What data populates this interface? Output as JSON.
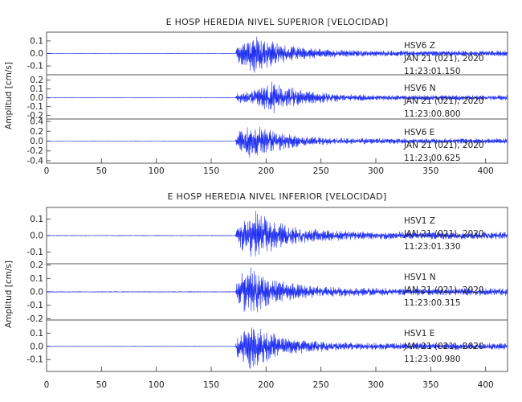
{
  "colors": {
    "trace": "#1f2ff0",
    "frame": "#555555",
    "text": "#222222",
    "background": "#ffffff"
  },
  "chart_data": [
    {
      "type": "line",
      "title": "E HOSP HEREDIA NIVEL SUPERIOR [VELOCIDAD]",
      "ylabel": "Amplitud [cm/s]",
      "xlim": [
        0,
        420
      ],
      "x_ticks": [
        "0",
        "50",
        "100",
        "150",
        "200",
        "250",
        "300",
        "350",
        "400"
      ],
      "grid": false,
      "channels": [
        {
          "station": "HSV6",
          "component": "Z",
          "date": "JAN 21 (021), 2020",
          "time": "11:23:01.150",
          "ylim": [
            -0.17,
            0.17
          ],
          "y_ticks": [
            "0.1",
            "0.0",
            "-0.1"
          ],
          "onset": 172,
          "peak_time": 191,
          "peak": 0.16,
          "noise": 0.002
        },
        {
          "station": "HSV6",
          "component": "N",
          "date": "JAN 21 (021), 2020",
          "time": "11:23:00.800",
          "ylim": [
            -0.24,
            0.26
          ],
          "y_ticks": [
            "0.2",
            "0.1",
            "0.0",
            "-0.1",
            "-0.2"
          ],
          "onset": 172,
          "peak_time": 208,
          "peak": 0.2,
          "noise": 0.003
        },
        {
          "station": "HSV6",
          "component": "E",
          "date": "JAN 21 (021), 2020",
          "time": "11:23:00.625",
          "ylim": [
            -0.45,
            0.45
          ],
          "y_ticks": [
            "0.4",
            "0.2",
            "0.0",
            "-0.2",
            "-0.4"
          ],
          "onset": 172,
          "peak_time": 190,
          "peak": 0.38,
          "noise": 0.004
        }
      ]
    },
    {
      "type": "line",
      "title": "E HOSP HEREDIA NIVEL INFERIOR [VELOCIDAD]",
      "ylabel": "Amplitud [cm/s]",
      "xlim": [
        0,
        420
      ],
      "x_ticks": [
        "0",
        "50",
        "100",
        "150",
        "200",
        "250",
        "300",
        "350",
        "400"
      ],
      "grid": false,
      "channels": [
        {
          "station": "HSV1",
          "component": "Z",
          "date": "JAN 21 (021), 2020",
          "time": "11:23:01.330",
          "ylim": [
            -0.17,
            0.17
          ],
          "y_ticks": [
            "0.1",
            "0.0",
            "-0.1"
          ],
          "onset": 172,
          "peak_time": 191,
          "peak": 0.16,
          "noise": 0.002
        },
        {
          "station": "HSV1",
          "component": "N",
          "date": "JAN 21 (021), 2020",
          "time": "11:23:00.315",
          "ylim": [
            -0.21,
            0.21
          ],
          "y_ticks": [
            "0.2",
            "0.1",
            "0.0",
            "-0.1",
            "-0.2"
          ],
          "onset": 172,
          "peak_time": 188,
          "peak": 0.19,
          "noise": 0.003
        },
        {
          "station": "HSV1",
          "component": "E",
          "date": "JAN 21 (021), 2020",
          "time": "11:23:00.980",
          "ylim": [
            -0.19,
            0.2
          ],
          "y_ticks": [
            "0.1",
            "0.0",
            "-0.1"
          ],
          "onset": 172,
          "peak_time": 189,
          "peak": 0.18,
          "noise": 0.002
        }
      ]
    }
  ]
}
